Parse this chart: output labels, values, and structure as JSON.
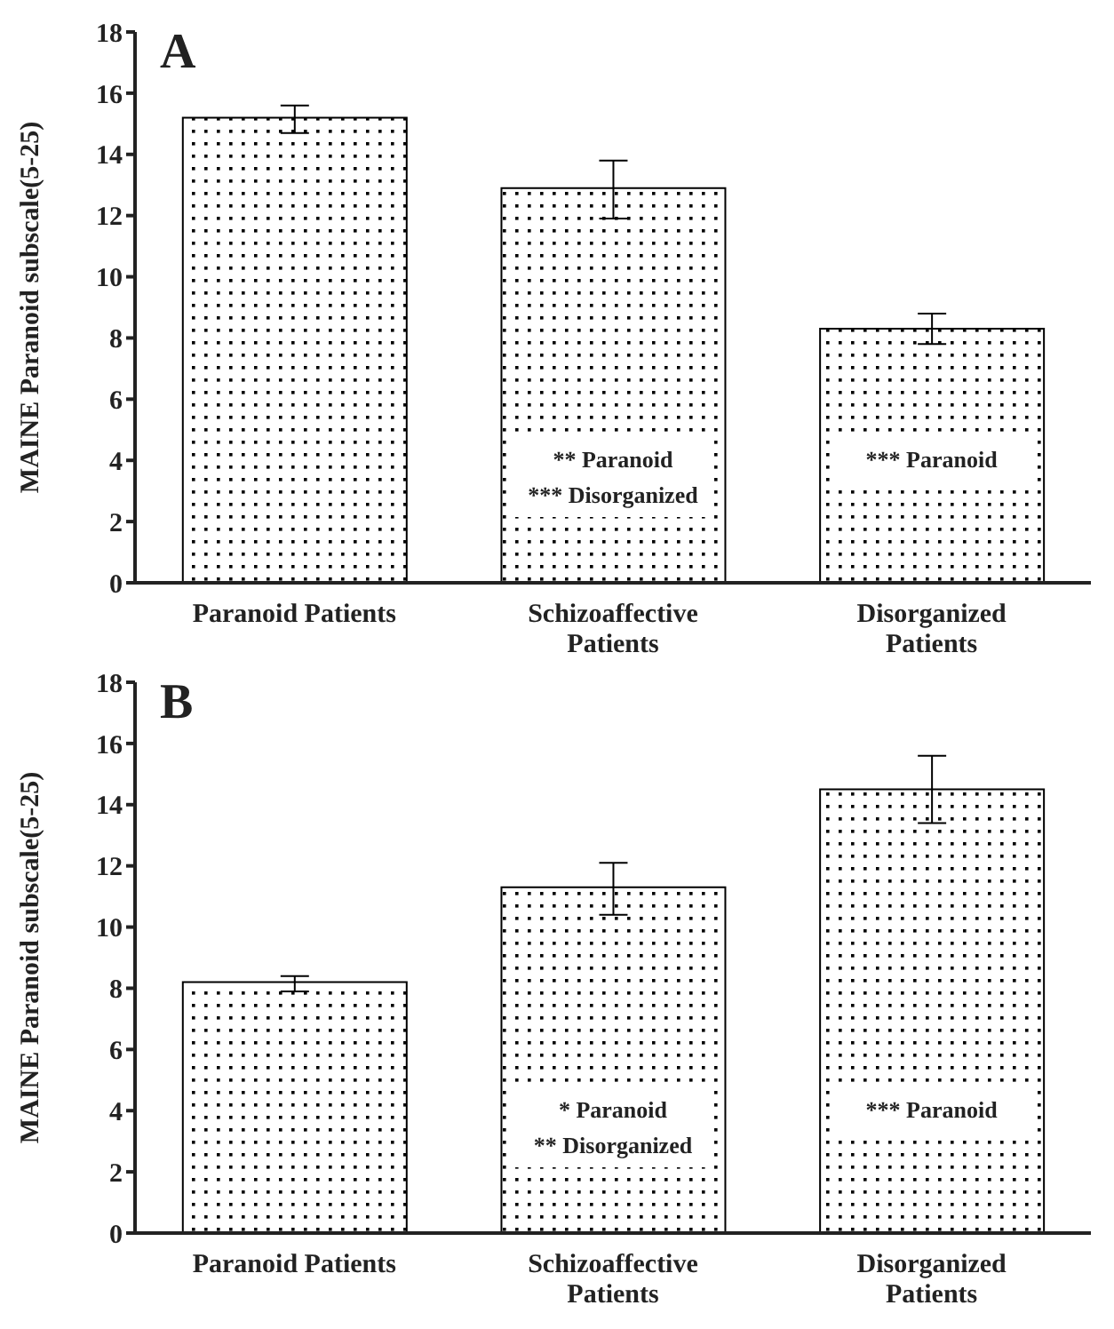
{
  "chart_data": [
    {
      "type": "bar",
      "title": "A",
      "ylabel": "MAINE Paranoid subscale(5-25)",
      "categories": [
        "Paranoid Patients",
        "Schizoaffective Patients",
        "Disorganized Patients"
      ],
      "series": [
        {
          "color": "#000000",
          "values": [
            15.2,
            12.9,
            8.3
          ],
          "errors": [
            [
              14.7,
              15.6
            ],
            [
              11.9,
              13.8
            ],
            [
              7.8,
              8.8
            ]
          ]
        }
      ],
      "ylim": [
        0,
        18
      ],
      "yticks": [
        0,
        2,
        4,
        6,
        8,
        10,
        12,
        14,
        16,
        18
      ],
      "grid": false,
      "legend": false,
      "annotations": [
        "** Paranoid\n*** Disorganized",
        "*** Paranoid"
      ]
    },
    {
      "type": "bar",
      "title": "B",
      "ylabel": "MAINE Paranoid subscale(5-25)",
      "categories": [
        "Paranoid Patients",
        "Schizoaffective Patients",
        "Disorganized Patients"
      ],
      "series": [
        {
          "color": "#000000",
          "values": [
            8.2,
            11.3,
            14.5
          ],
          "errors": [
            [
              7.9,
              8.4
            ],
            [
              10.4,
              12.1
            ],
            [
              13.4,
              15.6
            ]
          ]
        }
      ],
      "ylim": [
        0,
        18
      ],
      "yticks": [
        0,
        2,
        4,
        6,
        8,
        10,
        12,
        14,
        16,
        18
      ],
      "grid": false,
      "legend": false,
      "annotations": [
        "* Paranoid\n** Disorganized",
        "*** Paranoid"
      ]
    }
  ]
}
